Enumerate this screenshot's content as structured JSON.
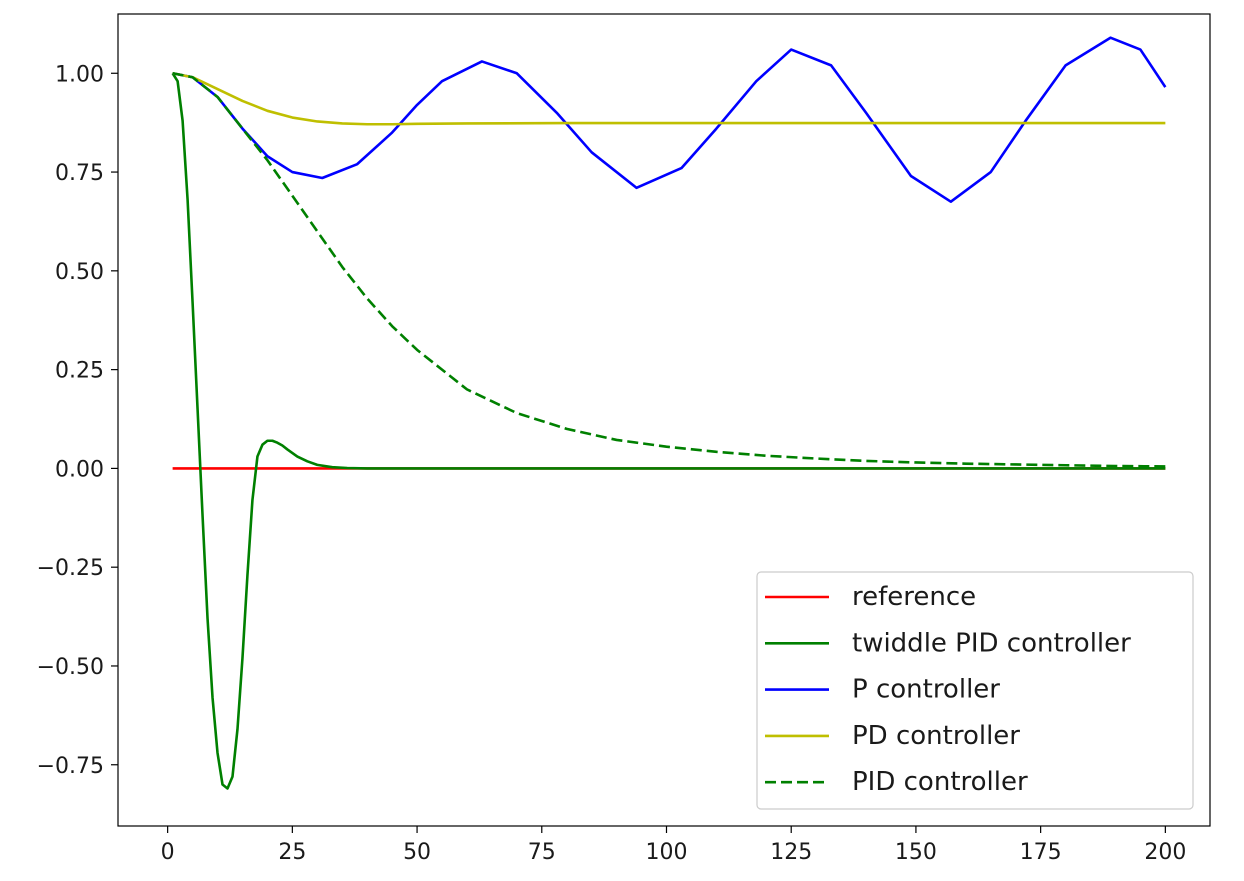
{
  "chart_data": {
    "type": "line",
    "title": "",
    "xlabel": "",
    "ylabel": "",
    "xlim": [
      -9.95,
      208.95
    ],
    "ylim": [
      -0.905,
      1.15
    ],
    "x_ticks": [
      0,
      25,
      50,
      75,
      100,
      125,
      150,
      175,
      200
    ],
    "x_tick_labels": [
      "0",
      "25",
      "50",
      "75",
      "100",
      "125",
      "150",
      "175",
      "200"
    ],
    "y_ticks": [
      -0.75,
      -0.5,
      -0.25,
      0.0,
      0.25,
      0.5,
      0.75,
      1.0
    ],
    "y_tick_labels": [
      "−0.75",
      "−0.50",
      "−0.25",
      "0.00",
      "0.25",
      "0.50",
      "0.75",
      "1.00"
    ],
    "grid": false,
    "legend_position": "lower-right",
    "series": [
      {
        "name": "reference",
        "color": "#ff0000",
        "dash": "solid",
        "x": [
          1,
          200
        ],
        "y": [
          0.0,
          0.0
        ]
      },
      {
        "name": "twiddle PID controller",
        "color": "#008000",
        "dash": "solid",
        "x": [
          1,
          2,
          3,
          4,
          5,
          6,
          7,
          8,
          9,
          10,
          11,
          12,
          13,
          14,
          15,
          16,
          17,
          18,
          19,
          20,
          21,
          22,
          23,
          24,
          26,
          28,
          30,
          33,
          36,
          40,
          50,
          75,
          100,
          150,
          200
        ],
        "y": [
          1.0,
          0.98,
          0.88,
          0.68,
          0.42,
          0.15,
          -0.12,
          -0.38,
          -0.58,
          -0.72,
          -0.8,
          -0.81,
          -0.78,
          -0.66,
          -0.48,
          -0.27,
          -0.08,
          0.03,
          0.06,
          0.07,
          0.07,
          0.065,
          0.058,
          0.048,
          0.03,
          0.018,
          0.009,
          0.003,
          0.001,
          0.0,
          0.0,
          0.0,
          0.0,
          0.0,
          0.0
        ]
      },
      {
        "name": "P controller",
        "color": "#0000ff",
        "dash": "solid",
        "x": [
          1,
          5,
          10,
          15,
          20,
          25,
          31,
          38,
          45,
          50,
          55,
          63,
          70,
          78,
          85,
          94,
          103,
          110,
          118,
          125,
          133,
          140,
          149,
          157,
          165,
          172,
          180,
          189,
          195,
          200
        ],
        "y": [
          1.0,
          0.99,
          0.94,
          0.86,
          0.79,
          0.75,
          0.735,
          0.77,
          0.85,
          0.92,
          0.98,
          1.03,
          1.0,
          0.9,
          0.8,
          0.71,
          0.76,
          0.86,
          0.98,
          1.06,
          1.02,
          0.9,
          0.74,
          0.675,
          0.75,
          0.88,
          1.02,
          1.09,
          1.06,
          0.965
        ]
      },
      {
        "name": "PD controller",
        "color": "#bfbf00",
        "dash": "solid",
        "x": [
          1,
          5,
          10,
          15,
          20,
          25,
          30,
          35,
          40,
          45,
          50,
          60,
          80,
          120,
          160,
          200
        ],
        "y": [
          1.0,
          0.99,
          0.96,
          0.93,
          0.905,
          0.888,
          0.878,
          0.873,
          0.871,
          0.871,
          0.872,
          0.873,
          0.874,
          0.874,
          0.874,
          0.874
        ]
      },
      {
        "name": "PID controller",
        "color": "#008000",
        "dash": "dashed",
        "x": [
          1,
          5,
          10,
          15,
          20,
          25,
          30,
          35,
          40,
          45,
          50,
          55,
          60,
          70,
          80,
          90,
          100,
          110,
          120,
          130,
          140,
          150,
          160,
          170,
          180,
          190,
          200
        ],
        "y": [
          1.0,
          0.99,
          0.94,
          0.86,
          0.78,
          0.69,
          0.6,
          0.51,
          0.43,
          0.36,
          0.3,
          0.25,
          0.2,
          0.14,
          0.1,
          0.072,
          0.055,
          0.042,
          0.032,
          0.025,
          0.019,
          0.015,
          0.012,
          0.01,
          0.008,
          0.006,
          0.005
        ]
      }
    ]
  }
}
